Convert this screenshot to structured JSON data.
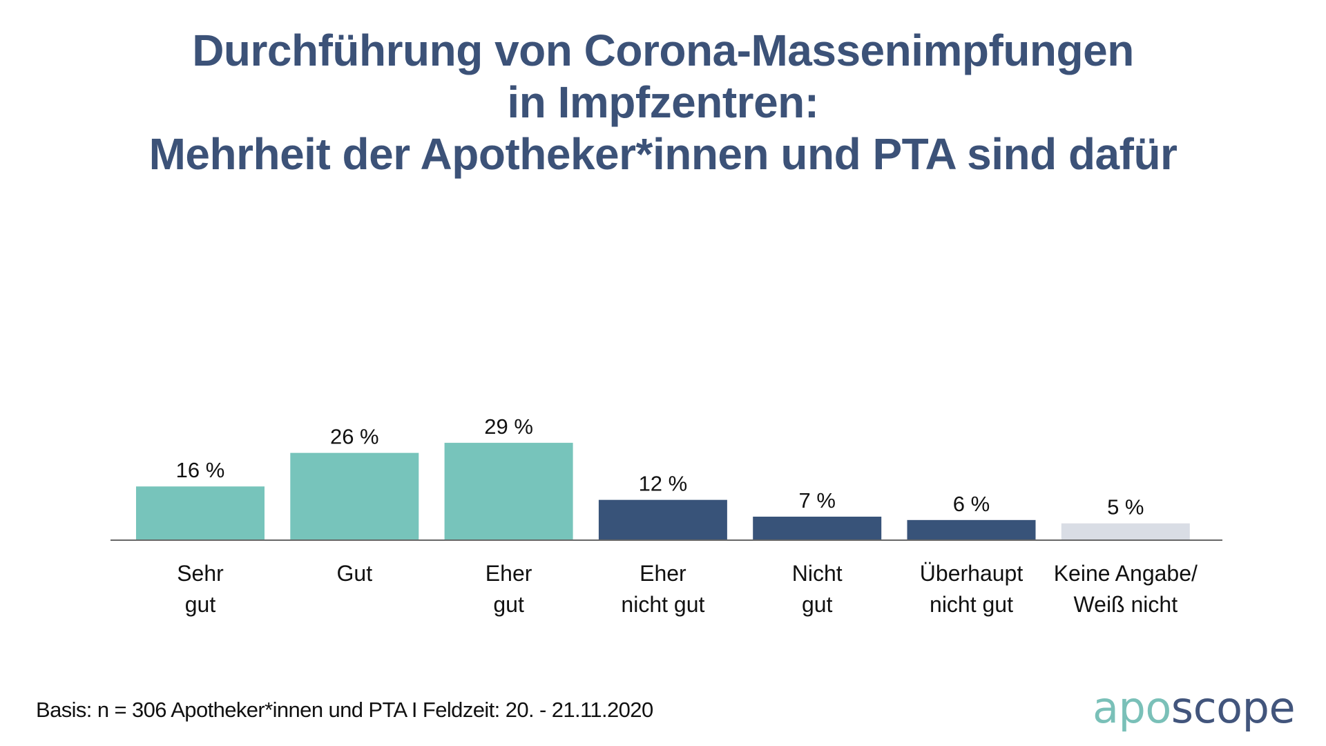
{
  "title": {
    "lines": [
      "Durchführung von Corona-Massenimpfungen",
      "in Impfzentren:",
      "Mehrheit der Apotheker*innen und PTA sind dafür"
    ]
  },
  "chart_data": {
    "type": "bar",
    "title": "Durchführung von Corona-Massenimpfungen in Impfzentren: Mehrheit der Apotheker*innen und PTA sind dafür",
    "xlabel": "",
    "ylabel": "",
    "ylim": [
      0,
      35
    ],
    "grid": false,
    "categories": [
      [
        "Sehr",
        "gut"
      ],
      [
        "Gut"
      ],
      [
        "Eher",
        "gut"
      ],
      [
        "Eher",
        "nicht gut"
      ],
      [
        "Nicht",
        "gut"
      ],
      [
        "Überhaupt",
        "nicht gut"
      ],
      [
        "Keine Angabe/",
        "Weiß nicht"
      ]
    ],
    "values": [
      16,
      26,
      29,
      12,
      7,
      6,
      5
    ],
    "value_labels": [
      "16 %",
      "26 %",
      "29 %",
      "12 %",
      "7 %",
      "6 %",
      "5 %"
    ],
    "unit": "%",
    "bar_colors": [
      "#77c4bb",
      "#77c4bb",
      "#77c4bb",
      "#385379",
      "#385379",
      "#385379",
      "#d9dde5"
    ],
    "axis_color": "#666666"
  },
  "footer": {
    "basis": "Basis: n = 306 Apotheker*innen und PTA I Feldzeit: 20. - 21.11.2020"
  },
  "logo": {
    "part1": "apo",
    "part2": "scope"
  }
}
